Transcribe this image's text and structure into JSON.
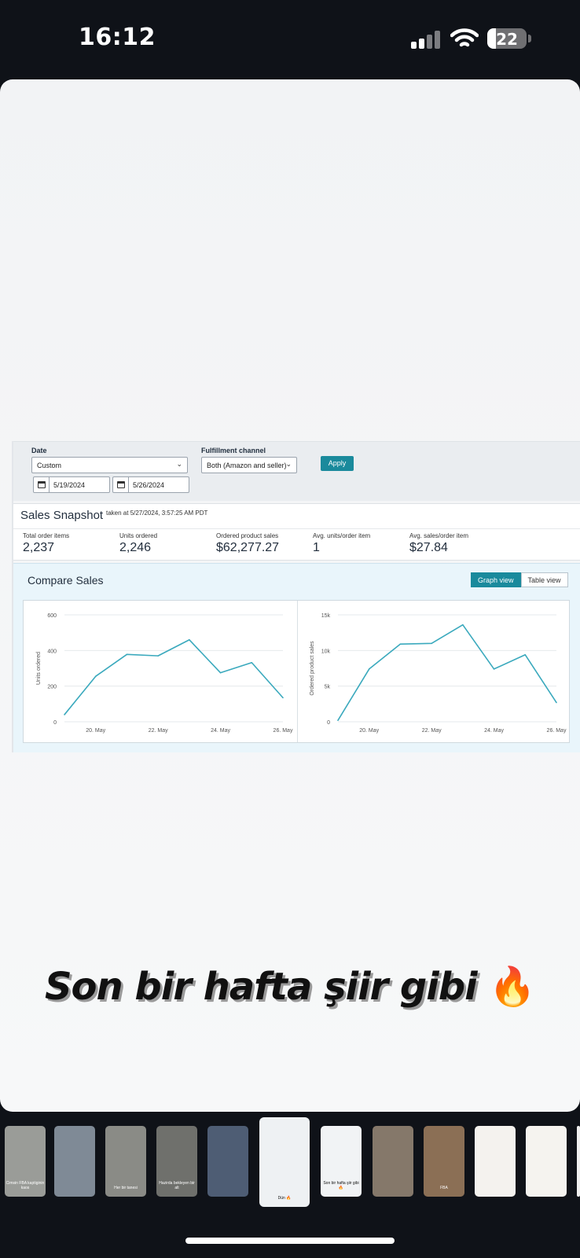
{
  "status_bar": {
    "time": "16:12",
    "battery_level": "22"
  },
  "filters": {
    "date_label": "Date",
    "date_preset": "Custom",
    "start_date": "5/19/2024",
    "end_date": "5/26/2024",
    "channel_label": "Fulfillment channel",
    "channel_value": "Both (Amazon and seller)",
    "apply_label": "Apply"
  },
  "snapshot": {
    "title": "Sales Snapshot",
    "taken_at": "taken at 5/27/2024, 3:57:25 AM PDT",
    "metrics": [
      {
        "label": "Total order items",
        "value": "2,237"
      },
      {
        "label": "Units ordered",
        "value": "2,246"
      },
      {
        "label": "Ordered product sales",
        "value": "$62,277.27"
      },
      {
        "label": "Avg. units/order item",
        "value": "1"
      },
      {
        "label": "Avg. sales/order item",
        "value": "$27.84"
      }
    ]
  },
  "compare": {
    "title": "Compare Sales",
    "graph_view_label": "Graph view",
    "table_view_label": "Table view",
    "line_color": "#3aa9bd"
  },
  "chart_data": [
    {
      "type": "line",
      "ylabel": "Units ordered",
      "x": [
        "19. May",
        "20. May",
        "21. May",
        "22. May",
        "23. May",
        "24. May",
        "25. May",
        "26. May"
      ],
      "xticks": [
        "20. May",
        "22. May",
        "24. May",
        "26. May"
      ],
      "yticks": [
        "0",
        "200",
        "400",
        "600"
      ],
      "ylim": [
        0,
        600
      ],
      "values": [
        40,
        255,
        378,
        370,
        460,
        275,
        332,
        135
      ]
    },
    {
      "type": "line",
      "ylabel": "Ordered product sales",
      "x": [
        "19. May",
        "20. May",
        "21. May",
        "22. May",
        "23. May",
        "24. May",
        "25. May",
        "26. May"
      ],
      "xticks": [
        "20. May",
        "22. May",
        "24. May",
        "26. May"
      ],
      "yticks": [
        "0",
        "5k",
        "10k",
        "15k"
      ],
      "ylim": [
        0,
        15000
      ],
      "values": [
        200,
        7400,
        10900,
        11000,
        13600,
        7400,
        9400,
        2700
      ]
    }
  ],
  "caption": {
    "text": "Son bir hafta şiir gibi",
    "emoji": "🔥"
  },
  "thumbnails": [
    {
      "name": "thumb-1",
      "color": "#9a9c98",
      "label": "Cimsin FBA kaptiginin kaos"
    },
    {
      "name": "thumb-2",
      "color": "#7f8a96",
      "label": ""
    },
    {
      "name": "thumb-3",
      "color": "#8a8b86",
      "label": "Her bir tanesi"
    },
    {
      "name": "thumb-4",
      "color": "#6f706c",
      "label": "Hazirda bekleyen bir alt"
    },
    {
      "name": "thumb-5",
      "color": "#4e5d74",
      "label": ""
    },
    {
      "name": "thumb-6",
      "color": "#eef1f3",
      "label": "Dün 🔥"
    },
    {
      "name": "thumb-7",
      "color": "#f1f3f5",
      "label": "Son bir hafta şiir gibi 🔥"
    },
    {
      "name": "thumb-8",
      "color": "#85786a",
      "label": ""
    },
    {
      "name": "thumb-9",
      "color": "#8b6f55",
      "label": "FBA"
    },
    {
      "name": "thumb-10",
      "color": "#f4f2ee",
      "label": ""
    },
    {
      "name": "thumb-11",
      "color": "#f5f3ef",
      "label": ""
    },
    {
      "name": "thumb-12",
      "color": "#f0f0f0",
      "label": ""
    }
  ]
}
